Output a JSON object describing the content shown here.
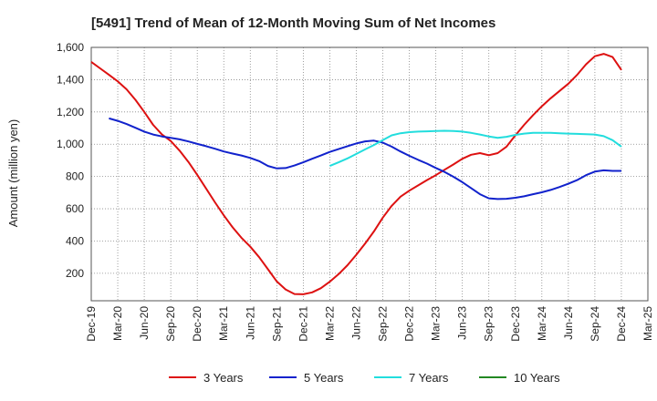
{
  "chart_data": {
    "type": "line",
    "title": "[5491]  Trend of Mean of 12-Month Moving Sum of Net Incomes",
    "ylabel": "Amount (million yen)",
    "xlabel": "",
    "ylim": [
      30,
      1600
    ],
    "yticks": [
      200,
      400,
      600,
      800,
      1000,
      1200,
      1400,
      1600
    ],
    "ytick_labels": [
      "200",
      "400",
      "600",
      "800",
      "1,000",
      "1,200",
      "1,400",
      "1,600"
    ],
    "x_months": [
      "Dec-19",
      "Jan-20",
      "Feb-20",
      "Mar-20",
      "Apr-20",
      "May-20",
      "Jun-20",
      "Jul-20",
      "Aug-20",
      "Sep-20",
      "Oct-20",
      "Nov-20",
      "Dec-20",
      "Jan-21",
      "Feb-21",
      "Mar-21",
      "Apr-21",
      "May-21",
      "Jun-21",
      "Jul-21",
      "Aug-21",
      "Sep-21",
      "Oct-21",
      "Nov-21",
      "Dec-21",
      "Jan-22",
      "Feb-22",
      "Mar-22",
      "Apr-22",
      "May-22",
      "Jun-22",
      "Jul-22",
      "Aug-22",
      "Sep-22",
      "Oct-22",
      "Nov-22",
      "Dec-22",
      "Jan-23",
      "Feb-23",
      "Mar-23",
      "Apr-23",
      "May-23",
      "Jun-23",
      "Jul-23",
      "Aug-23",
      "Sep-23",
      "Oct-23",
      "Nov-23",
      "Dec-23",
      "Jan-24",
      "Feb-24",
      "Mar-24",
      "Apr-24",
      "May-24",
      "Jun-24",
      "Jul-24",
      "Aug-24",
      "Sep-24",
      "Oct-24",
      "Nov-24",
      "Dec-24"
    ],
    "xtick_labels": [
      "Dec-19",
      "Mar-20",
      "Jun-20",
      "Sep-20",
      "Dec-20",
      "Mar-21",
      "Jun-21",
      "Sep-21",
      "Dec-21",
      "Mar-22",
      "Jun-22",
      "Sep-22",
      "Dec-22",
      "Mar-23",
      "Jun-23",
      "Sep-23",
      "Dec-23",
      "Mar-24",
      "Jun-24",
      "Sep-24",
      "Dec-24",
      "Mar-25"
    ],
    "grid": true,
    "legend_position": "bottom",
    "series": [
      {
        "name": "3 Years",
        "color": "#dd1111",
        "start": "Dec-19",
        "values": [
          1510,
          1470,
          1430,
          1390,
          1340,
          1275,
          1200,
          1120,
          1060,
          1020,
          960,
          890,
          810,
          725,
          640,
          560,
          485,
          420,
          365,
          300,
          225,
          150,
          100,
          72,
          70,
          82,
          108,
          148,
          195,
          250,
          315,
          385,
          460,
          545,
          618,
          675,
          712,
          745,
          778,
          808,
          842,
          875,
          910,
          935,
          945,
          932,
          945,
          985,
          1055,
          1120,
          1180,
          1235,
          1285,
          1330,
          1375,
          1430,
          1495,
          1545,
          1560,
          1540,
          1460
        ]
      },
      {
        "name": "5 Years",
        "color": "#1122cc",
        "start": "Dec-19",
        "values": [
          null,
          null,
          1160,
          1145,
          1125,
          1102,
          1078,
          1060,
          1048,
          1040,
          1030,
          1017,
          1002,
          988,
          972,
          955,
          942,
          930,
          915,
          895,
          865,
          850,
          852,
          868,
          888,
          910,
          930,
          952,
          970,
          988,
          1005,
          1018,
          1022,
          1010,
          985,
          955,
          928,
          903,
          880,
          853,
          828,
          798,
          765,
          728,
          690,
          665,
          660,
          662,
          668,
          677,
          690,
          702,
          717,
          735,
          755,
          778,
          808,
          830,
          838,
          835,
          835
        ]
      },
      {
        "name": "7 Years",
        "color": "#22dddd",
        "start": "Dec-19",
        "values": [
          null,
          null,
          null,
          null,
          null,
          null,
          null,
          null,
          null,
          null,
          null,
          null,
          null,
          null,
          null,
          null,
          null,
          null,
          null,
          null,
          null,
          null,
          null,
          null,
          null,
          null,
          null,
          865,
          888,
          912,
          940,
          968,
          995,
          1025,
          1055,
          1068,
          1075,
          1078,
          1080,
          1082,
          1083,
          1082,
          1078,
          1070,
          1060,
          1048,
          1040,
          1046,
          1058,
          1066,
          1070,
          1070,
          1070,
          1068,
          1066,
          1064,
          1062,
          1060,
          1050,
          1025,
          985
        ]
      },
      {
        "name": "10 Years",
        "color": "#228822",
        "start": "Dec-19",
        "values": []
      }
    ]
  }
}
